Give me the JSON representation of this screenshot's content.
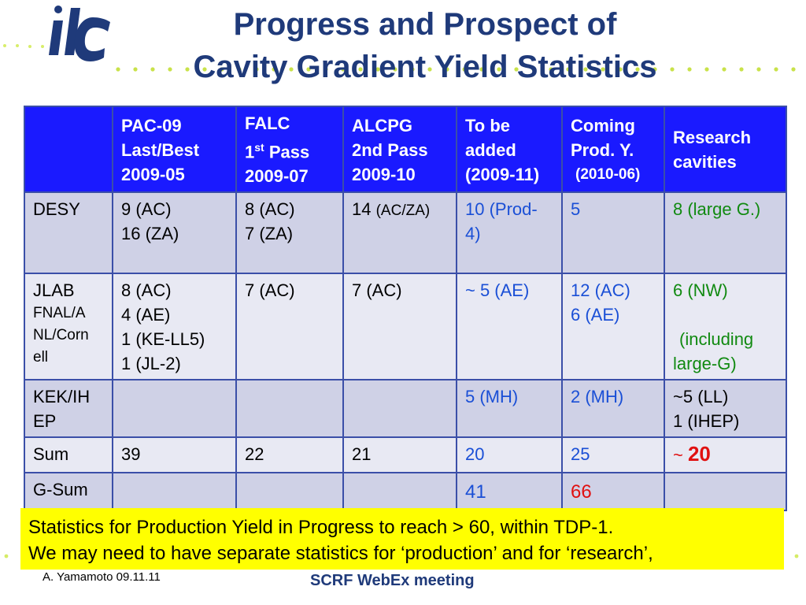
{
  "slide": {
    "title_line1": "Progress and Prospect of",
    "title_line2": "Cavity Gradient Yield Statistics",
    "logo_text": "ilc",
    "colors": {
      "title": "#1f3a7a",
      "header_bg": "#1a1aff",
      "note_bg": "#ffff00",
      "blue": "#1a4fd6",
      "green": "#118a11",
      "red": "#e01010"
    }
  },
  "table": {
    "headers": {
      "pac": [
        "PAC-09",
        "Last/Best",
        "2009-05"
      ],
      "falc": [
        "FALC",
        "1",
        "st",
        " Pass",
        "2009-07"
      ],
      "alcpg": [
        "ALCPG",
        "2nd Pass",
        "2009-10"
      ],
      "tobe": [
        "To be",
        "added",
        "(2009-11)"
      ],
      "coming": [
        "Coming",
        "Prod. Y.",
        "(2010-06)"
      ],
      "research": [
        "Research",
        "cavities"
      ]
    },
    "rows": {
      "desy": {
        "label": "DESY",
        "pac": [
          "9 (AC)",
          "16 (ZA)"
        ],
        "falc": [
          "8 (AC)",
          "7 (ZA)"
        ],
        "alcpg_num": "14 ",
        "alcpg_unit": "(AC/ZA)",
        "tobe": [
          "10 (Prod-",
          "4)"
        ],
        "coming": "5",
        "research": "8 (large G.)"
      },
      "jlab": {
        "label": "JLAB",
        "label_sub": [
          "FNAL/A",
          "NL/Corn",
          "ell"
        ],
        "pac": [
          "8 (AC)",
          "4 (AE)",
          "1 (KE-LL5)",
          "1 (JL-2)"
        ],
        "falc": "7 (AC)",
        "alcpg": "7 (AC)",
        "tobe": "~ 5 (AE)",
        "coming": [
          "12 (AC)",
          "6 (AE)"
        ],
        "research": [
          "6 (NW)",
          "(including",
          "large-G)"
        ]
      },
      "kek": {
        "label": [
          "KEK/IH",
          "EP"
        ],
        "tobe": "5 (MH)",
        "coming": "2 (MH)",
        "research": [
          "~5 (LL)",
          "1 (IHEP)"
        ]
      },
      "sum": {
        "label": "Sum",
        "pac": "39",
        "falc": "22",
        "alcpg": "21",
        "tobe": "20",
        "coming": "25",
        "research_tilde": "~ ",
        "research_num": "20"
      },
      "gsum": {
        "label": "G-Sum",
        "tobe": "41",
        "coming": "66"
      }
    }
  },
  "note": {
    "line1": "Statistics for Production Yield in Progress to reach > 60, within TDP-1.",
    "line2": "We may need to have separate statistics for ‘production’ and for ‘research’,"
  },
  "footer": {
    "author": "A. Yamamoto 09.11.11",
    "meeting": "SCRF WebEx meeting"
  }
}
